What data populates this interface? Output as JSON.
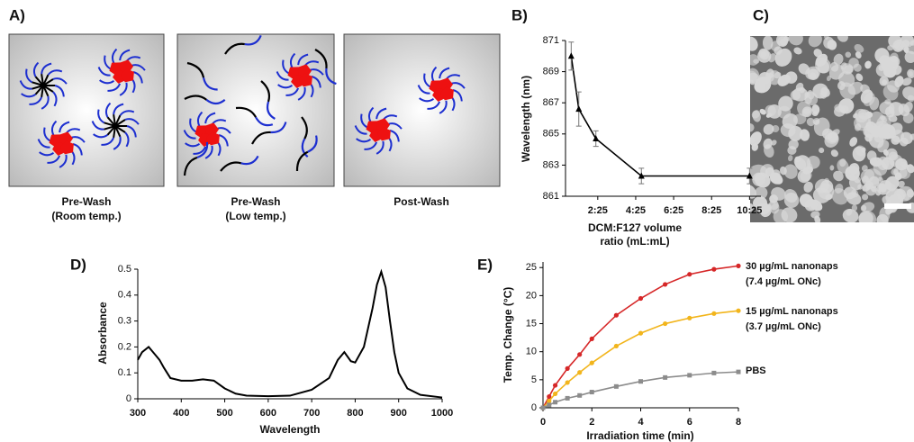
{
  "panels": [
    "A)",
    "B)",
    "C)",
    "D)",
    "E)"
  ],
  "diagram": {
    "captions": [
      [
        "Pre-Wash",
        "(Room temp.)"
      ],
      [
        "Pre-Wash",
        "(Low temp.)"
      ],
      [
        "Post-Wash"
      ]
    ]
  },
  "chart_data": [
    {
      "type": "line",
      "ylabel": "Wavelength (nm)",
      "xlabel": [
        "DCM:F127 volume",
        "ratio (mL:mL)"
      ],
      "x": [
        0.6,
        1,
        1.9,
        4.3,
        10
      ],
      "series": [
        {
          "color": "#000000",
          "marker": "triangle",
          "values": [
            870,
            866.6,
            864.7,
            862.3,
            862.3
          ],
          "errors": [
            0.9,
            1.1,
            0.5,
            0.5,
            0.5
          ]
        }
      ],
      "xlim": [
        0.3,
        10.6
      ],
      "xticks": [
        {
          "value": 2,
          "label": "2:25"
        },
        {
          "value": 4,
          "label": "4:25"
        },
        {
          "value": 6,
          "label": "6:25"
        },
        {
          "value": 8,
          "label": "8:25"
        },
        {
          "value": 10,
          "label": "10:25"
        }
      ],
      "ylim": [
        861,
        871
      ],
      "yticks": [
        861,
        863,
        865,
        867,
        869,
        871
      ]
    },
    {
      "type": "line",
      "ylabel": "Absorbance",
      "xlabel": [
        "Wavelength"
      ],
      "x": [
        300,
        310,
        325,
        340,
        350,
        360,
        375,
        400,
        425,
        450,
        475,
        500,
        525,
        550,
        600,
        650,
        700,
        740,
        760,
        775,
        790,
        800,
        820,
        840,
        850,
        860,
        870,
        880,
        890,
        900,
        920,
        950,
        1000
      ],
      "series": [
        {
          "color": "#000000",
          "values": [
            0.15,
            0.18,
            0.2,
            0.17,
            0.15,
            0.12,
            0.08,
            0.07,
            0.07,
            0.075,
            0.07,
            0.04,
            0.02,
            0.012,
            0.01,
            0.012,
            0.035,
            0.08,
            0.15,
            0.18,
            0.145,
            0.14,
            0.2,
            0.35,
            0.44,
            0.49,
            0.43,
            0.3,
            0.18,
            0.1,
            0.04,
            0.015,
            0.005
          ]
        }
      ],
      "xlim": [
        300,
        1000
      ],
      "xticks": [
        300,
        400,
        500,
        600,
        700,
        800,
        900,
        1000
      ],
      "ylim": [
        0,
        0.5
      ],
      "yticks": [
        0,
        0.1,
        0.2,
        0.3,
        0.4,
        0.5
      ]
    },
    {
      "type": "line",
      "ylabel": "Temp. Change (°C)",
      "xlabel": [
        "Irradiation time (min)"
      ],
      "legend": "right",
      "x": [
        0,
        0.25,
        0.5,
        1,
        1.5,
        2,
        3,
        4,
        5,
        6,
        7,
        8
      ],
      "series": [
        {
          "name": "30 µg/mL nanonaps",
          "subname": "(7.4 µg/mL ONc)",
          "color": "#d62728",
          "marker": "circle",
          "values": [
            0,
            2,
            4,
            7,
            9.5,
            12.3,
            16.5,
            19.5,
            22,
            23.8,
            24.7,
            25.3
          ]
        },
        {
          "name": "15 µg/mL nanonaps",
          "subname": "(3.7 µg/mL ONc)",
          "color": "#f2b51c",
          "marker": "circle",
          "values": [
            0,
            1.2,
            2.5,
            4.5,
            6.3,
            8,
            11,
            13.3,
            15,
            16,
            16.8,
            17.3
          ]
        },
        {
          "name": "PBS",
          "color": "#8c8c8c",
          "marker": "square",
          "values": [
            0,
            0.5,
            1,
            1.7,
            2.2,
            2.8,
            3.8,
            4.7,
            5.4,
            5.8,
            6.2,
            6.4
          ]
        }
      ],
      "xlim": [
        0,
        8
      ],
      "xticks": [
        0,
        2,
        4,
        6,
        8
      ],
      "ylim": [
        0,
        26
      ],
      "yticks": [
        0,
        5,
        10,
        15,
        20,
        25
      ]
    }
  ]
}
